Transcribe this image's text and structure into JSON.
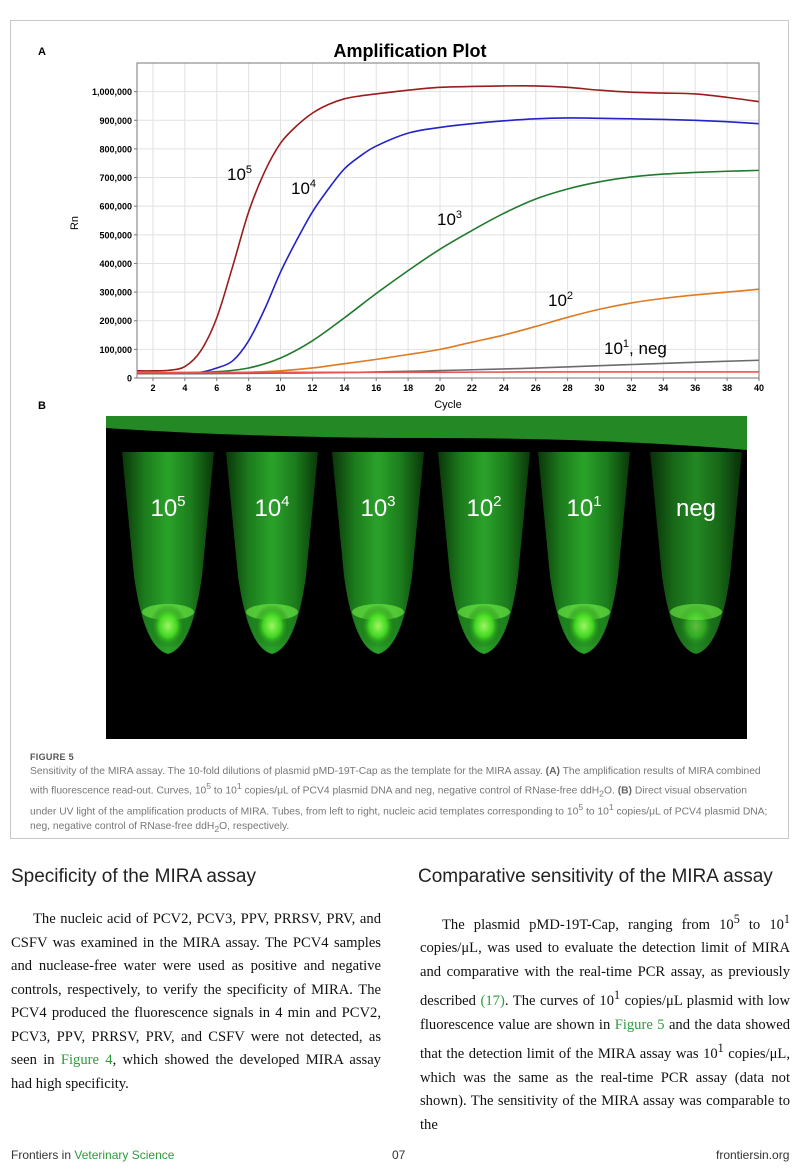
{
  "figure": {
    "panel_a_letter": "A",
    "panel_b_letter": "B",
    "chart_data": {
      "type": "line",
      "title": "Amplification Plot",
      "xlabel": "Cycle",
      "ylabel": "Rn",
      "xlim": [
        1,
        40
      ],
      "ylim": [
        0,
        1100000
      ],
      "x_ticks": [
        2,
        4,
        6,
        8,
        10,
        12,
        14,
        16,
        18,
        20,
        22,
        24,
        26,
        28,
        30,
        32,
        34,
        36,
        38,
        40
      ],
      "y_ticks": [
        0,
        100000,
        200000,
        300000,
        400000,
        500000,
        600000,
        700000,
        800000,
        900000,
        1000000
      ],
      "y_tick_labels": [
        "0",
        "100,000",
        "200,000",
        "300,000",
        "400,000",
        "500,000",
        "600,000",
        "700,000",
        "800,000",
        "900,000",
        "1,000,000"
      ],
      "grid": true,
      "series": [
        {
          "name": "10^5",
          "label_base": "10",
          "label_exp": "5",
          "color": "#9a1c1c",
          "x": [
            1,
            2,
            3,
            4,
            5,
            6,
            7,
            8,
            9,
            10,
            11,
            12,
            13,
            14,
            15,
            16,
            18,
            20,
            22,
            24,
            26,
            28,
            30,
            32,
            34,
            36,
            38,
            40
          ],
          "y": [
            25000,
            25000,
            27000,
            40000,
            95000,
            210000,
            390000,
            580000,
            720000,
            820000,
            880000,
            925000,
            955000,
            975000,
            985000,
            992000,
            1005000,
            1015000,
            1018000,
            1020000,
            1020000,
            1015000,
            1005000,
            998000,
            995000,
            992000,
            980000,
            965000
          ]
        },
        {
          "name": "10^4",
          "label_base": "10",
          "label_exp": "4",
          "color": "#2323c8",
          "x": [
            1,
            2,
            3,
            4,
            5,
            6,
            7,
            8,
            9,
            10,
            11,
            12,
            13,
            14,
            15,
            16,
            18,
            20,
            22,
            24,
            26,
            28,
            30,
            32,
            34,
            36,
            38,
            40
          ],
          "y": [
            15000,
            15000,
            15000,
            16000,
            20000,
            35000,
            60000,
            130000,
            240000,
            370000,
            480000,
            580000,
            660000,
            730000,
            775000,
            810000,
            855000,
            875000,
            888000,
            898000,
            905000,
            908000,
            907000,
            905000,
            903000,
            900000,
            895000,
            888000
          ]
        },
        {
          "name": "10^3",
          "label_base": "10",
          "label_exp": "3",
          "color": "#1f7a2e",
          "x": [
            1,
            2,
            4,
            6,
            8,
            10,
            12,
            14,
            16,
            18,
            20,
            22,
            24,
            26,
            28,
            30,
            32,
            34,
            36,
            38,
            40
          ],
          "y": [
            18000,
            18000,
            19000,
            22000,
            35000,
            70000,
            130000,
            210000,
            295000,
            375000,
            450000,
            515000,
            575000,
            625000,
            660000,
            685000,
            702000,
            712000,
            718000,
            722000,
            725000
          ]
        },
        {
          "name": "10^2",
          "label_base": "10",
          "label_exp": "2",
          "color": "#e07a20",
          "x": [
            1,
            2,
            4,
            6,
            8,
            10,
            12,
            14,
            16,
            18,
            20,
            22,
            24,
            26,
            28,
            30,
            32,
            34,
            36,
            38,
            40
          ],
          "y": [
            17000,
            17000,
            17000,
            18000,
            20000,
            25000,
            35000,
            50000,
            65000,
            82000,
            100000,
            125000,
            150000,
            180000,
            212000,
            240000,
            262000,
            278000,
            290000,
            300000,
            310000
          ]
        },
        {
          "name": "10^1",
          "label_base": "10",
          "label_exp": "1",
          "color": "#6b6b6b",
          "x": [
            1,
            5,
            10,
            15,
            20,
            25,
            30,
            35,
            40
          ],
          "y": [
            15000,
            15000,
            17000,
            20000,
            26000,
            33000,
            43000,
            53000,
            62000
          ]
        },
        {
          "name": "neg",
          "color": "#e8554f",
          "x": [
            1,
            5,
            10,
            15,
            20,
            25,
            30,
            35,
            40
          ],
          "y": [
            19000,
            19000,
            20000,
            20000,
            20000,
            21000,
            21000,
            21000,
            21000
          ]
        }
      ],
      "annotations": [
        {
          "base": "10",
          "exp": "5",
          "suffix": ""
        },
        {
          "base": "10",
          "exp": "4",
          "suffix": ""
        },
        {
          "base": "10",
          "exp": "3",
          "suffix": ""
        },
        {
          "base": "10",
          "exp": "2",
          "suffix": ""
        },
        {
          "base": "10",
          "exp": "1",
          "suffix": ", neg"
        }
      ]
    },
    "tubes": [
      {
        "base": "10",
        "exp": "5"
      },
      {
        "base": "10",
        "exp": "4"
      },
      {
        "base": "10",
        "exp": "3"
      },
      {
        "base": "10",
        "exp": "2"
      },
      {
        "base": "10",
        "exp": "1"
      },
      {
        "base": "neg",
        "exp": ""
      }
    ],
    "caption": {
      "label": "FIGURE 5",
      "t1": "Sensitivity of the MIRA assay. The 10-fold dilutions of plasmid pMD-19T-Cap as the template for the MIRA assay. ",
      "a": "(A)",
      "t2": " The amplification results of MIRA combined with fluorescence read-out. Curves, 10",
      "e5": "5",
      "t3": " to 10",
      "e1": "1",
      "t4": " copies/μL of PCV4 plasmid DNA and neg, negative control of RNase-free ddH",
      "sub2": "2",
      "t5": "O. ",
      "b": "(B)",
      "t6": " Direct visual observation under UV light of the amplification products of MIRA. Tubes, from left to right, nucleic acid templates corresponding to 10",
      "e5b": "5",
      "t7": " to 10",
      "e1b": "1",
      "t8": " copies/μL of PCV4 plasmid DNA; neg, negative control of RNase-free ddH",
      "sub2b": "2",
      "t9": "O, respectively."
    }
  },
  "left_section": {
    "heading": "Specificity of the MIRA assay",
    "p1": "The nucleic acid of PCV2, PCV3, PPV, PRRSV, PRV, and CSFV was examined in the MIRA assay. The PCV4 samples and nuclease-free water were used as positive and negative controls, respectively, to verify the specificity of MIRA. The PCV4 produced the fluorescence signals in 4 min and PCV2, PCV3, PPV, PRRSV, PRV, and CSFV were not detected, as seen in ",
    "link": "Figure 4",
    "p2": ", which showed the developed MIRA assay had high specificity."
  },
  "right_section": {
    "heading": "Comparative sensitivity of the MIRA assay",
    "t1": "The plasmid pMD-19T-Cap, ranging from 10",
    "e1": "5",
    "t2": " to 10",
    "e2": "1",
    "t3": " copies/μL, was used to evaluate the detection limit of MIRA and comparative with the real-time PCR assay, as previously described ",
    "ref": "(17)",
    "t4": ". The curves of 10",
    "e3": "1",
    "t5": " copies/μL plasmid with low fluorescence value are shown in ",
    "fig": "Figure 5",
    "t6": " and the data showed that the detection limit of the MIRA assay was 10",
    "e4": "1",
    "t7": " copies/μL, which was the same as the real-time PCR assay (data not shown). The sensitivity of the MIRA assay was comparable to the"
  },
  "footer": {
    "journal_prefix": "Frontiers in ",
    "journal_name": "Veterinary Science",
    "page": "07",
    "site": "frontiersin.org"
  }
}
